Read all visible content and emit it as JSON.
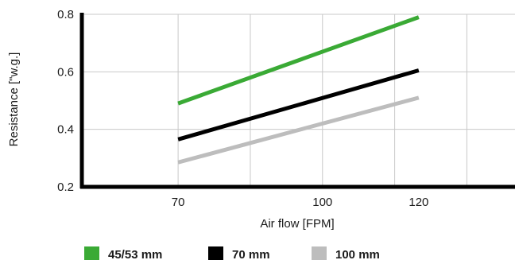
{
  "chart_data": {
    "type": "line",
    "title": "",
    "xlabel": "Air flow [FPM]",
    "ylabel": "Resistance [\"w.g.]",
    "xlim": [
      50,
      140
    ],
    "ylim": [
      0.2,
      0.8
    ],
    "x_ticks": [
      70,
      100,
      120
    ],
    "y_ticks": [
      0.2,
      0.4,
      0.6,
      0.8
    ],
    "x_tick_labels": [
      "70",
      "100",
      "120"
    ],
    "y_tick_labels": [
      "0.2",
      "0.4",
      "0.6",
      "0.8"
    ],
    "x_gridlines": [
      70,
      85,
      100,
      115,
      130
    ],
    "y_gridlines": [
      0.4,
      0.6,
      0.8
    ],
    "grid": true,
    "legend_position": "bottom",
    "series": [
      {
        "name": "45/53 mm",
        "color": "#3aaa35",
        "x": [
          70,
          120
        ],
        "y": [
          0.49,
          0.79
        ]
      },
      {
        "name": "70 mm",
        "color": "#000000",
        "x": [
          70,
          120
        ],
        "y": [
          0.365,
          0.605
        ]
      },
      {
        "name": "100 mm",
        "color": "#bdbdbd",
        "x": [
          70,
          120
        ],
        "y": [
          0.285,
          0.51
        ]
      }
    ]
  }
}
